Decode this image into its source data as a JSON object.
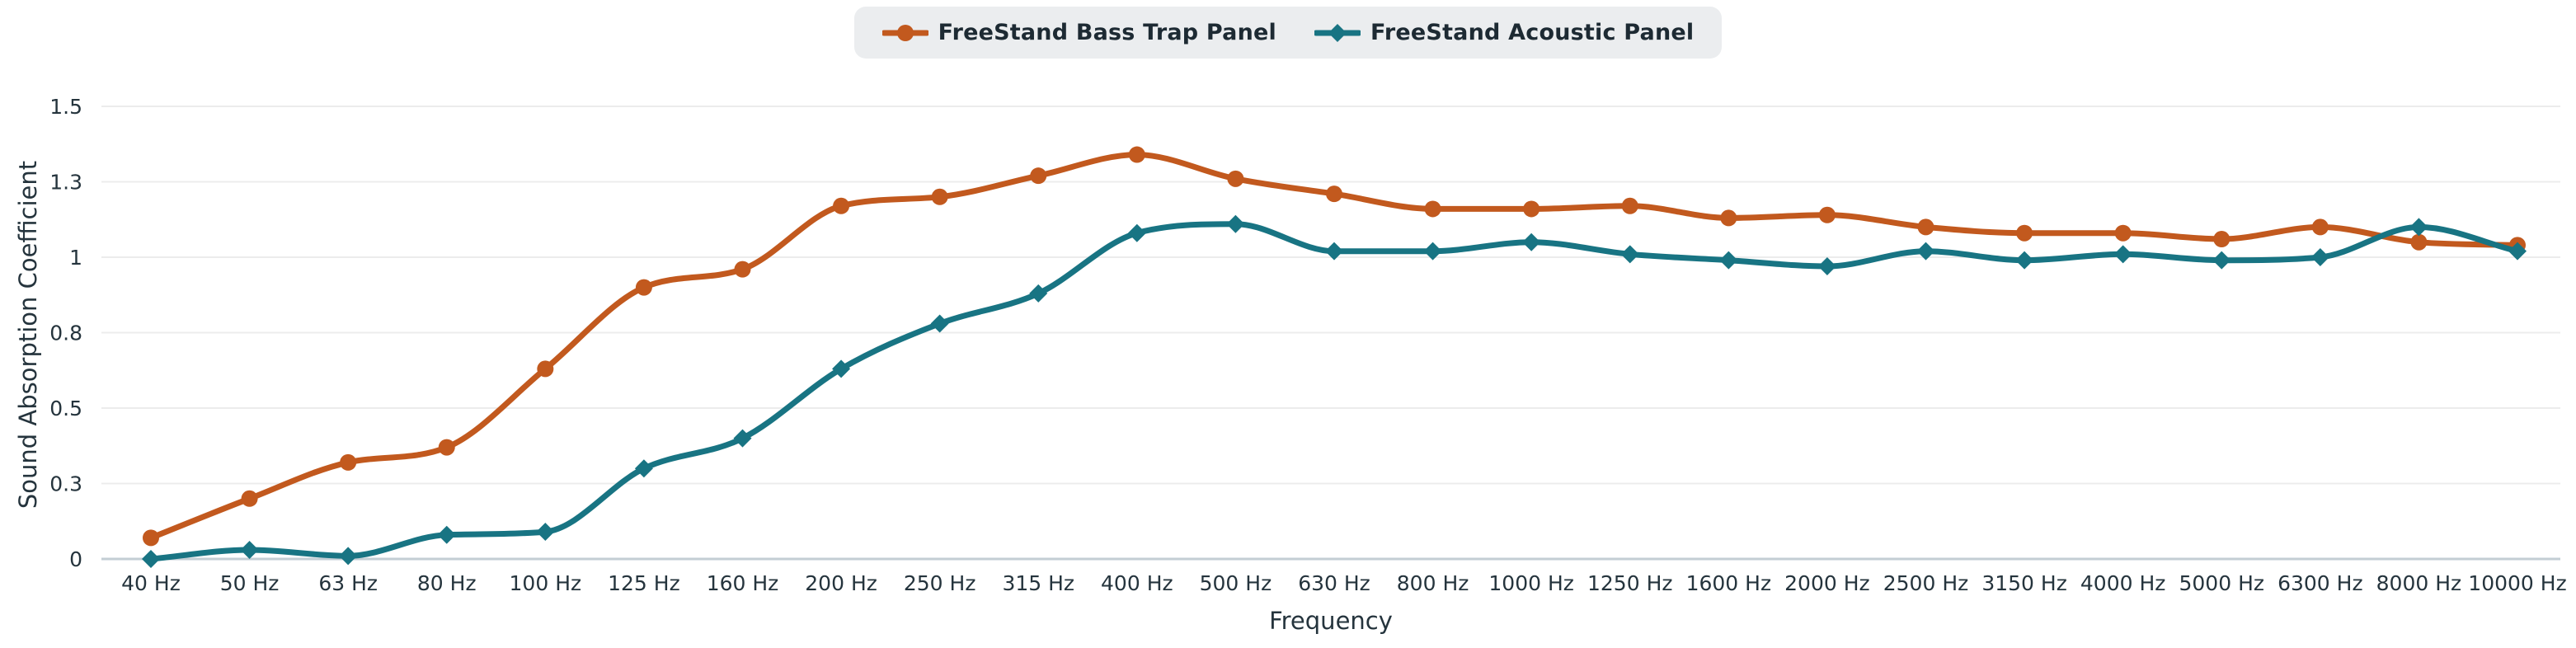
{
  "legend": {
    "items": [
      {
        "label": "FreeStand Bass Trap Panel",
        "color": "#c2591e",
        "marker": "circle"
      },
      {
        "label": "FreeStand Acoustic Panel",
        "color": "#187483",
        "marker": "diamond"
      }
    ]
  },
  "colors": {
    "bass_trap": "#c2591e",
    "acoustic": "#187483",
    "grid_line": "#ececec",
    "axis_line": "#c3ced4",
    "tick_text": "#25343d",
    "legend_bg": "#ebedef",
    "background": "#ffffff"
  },
  "chart_data": {
    "type": "line",
    "title": "",
    "xlabel": "Frequency",
    "ylabel": "Sound Absorption Coefficient",
    "categories": [
      "40 Hz",
      "50 Hz",
      "63 Hz",
      "80 Hz",
      "100 Hz",
      "125 Hz",
      "160 Hz",
      "200 Hz",
      "250 Hz",
      "315 Hz",
      "400 Hz",
      "500 Hz",
      "630 Hz",
      "800 Hz",
      "1000 Hz",
      "1250 Hz",
      "1600 Hz",
      "2000 Hz",
      "2500 Hz",
      "3150 Hz",
      "4000 Hz",
      "5000 Hz",
      "6300 Hz",
      "8000 Hz",
      "10000 Hz"
    ],
    "series": [
      {
        "name": "FreeStand Bass Trap Panel",
        "color": "#c2591e",
        "marker": "circle",
        "values": [
          0.07,
          0.2,
          0.32,
          0.37,
          0.63,
          0.9,
          0.96,
          1.17,
          1.2,
          1.27,
          1.34,
          1.26,
          1.21,
          1.16,
          1.16,
          1.17,
          1.13,
          1.14,
          1.1,
          1.08,
          1.08,
          1.06,
          1.1,
          1.05,
          1.04
        ]
      },
      {
        "name": "FreeStand Acoustic Panel",
        "color": "#187483",
        "marker": "diamond",
        "values": [
          0.0,
          0.03,
          0.01,
          0.08,
          0.09,
          0.3,
          0.4,
          0.63,
          0.78,
          0.88,
          1.08,
          1.11,
          1.02,
          1.02,
          1.05,
          1.01,
          0.99,
          0.97,
          1.02,
          0.99,
          1.01,
          0.99,
          1.0,
          1.1,
          1.02
        ]
      }
    ],
    "ylim": [
      0,
      1.5
    ],
    "yticks": [
      {
        "value": 0,
        "label": "0"
      },
      {
        "value": 0.25,
        "label": "0.3"
      },
      {
        "value": 0.5,
        "label": "0.5"
      },
      {
        "value": 0.75,
        "label": "0.8"
      },
      {
        "value": 1,
        "label": "1"
      },
      {
        "value": 1.25,
        "label": "1.3"
      },
      {
        "value": 1.5,
        "label": "1.5"
      }
    ],
    "grid": true,
    "legend_position": "top"
  }
}
